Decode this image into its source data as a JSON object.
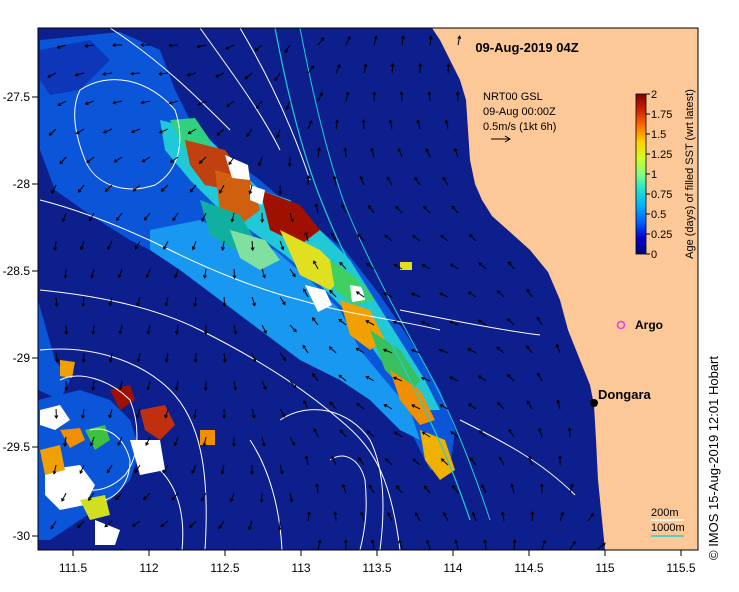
{
  "title": "09-Aug-2019 04Z",
  "current_info": {
    "line1": "NRT00 GSL",
    "line2": "09-Aug 00:00Z",
    "line3": "0.5m/s (1kt 6h)"
  },
  "colorbar": {
    "label": "Age (days) of filled SST (wrt latest)",
    "ticks": [
      "0",
      "0.25",
      "0.5",
      "0.75",
      "1",
      "1.25",
      "1.5",
      "1.75",
      "2"
    ],
    "colors": [
      "#00007f",
      "#0000d0",
      "#0060ff",
      "#00b0ff",
      "#20e0d0",
      "#80ff80",
      "#d0ff20",
      "#ffd000",
      "#ff7000",
      "#d02000",
      "#800000"
    ]
  },
  "places": [
    {
      "name": "Argo",
      "lon": 115.08,
      "lat": -28.85,
      "marker_color": "#e040e0"
    },
    {
      "name": "Dongara",
      "lon": 114.93,
      "lat": -29.27,
      "marker_color": "#000000"
    }
  ],
  "axes": {
    "x_ticks": [
      "111.5",
      "112",
      "112.5",
      "113",
      "113.5",
      "114",
      "114.5",
      "115",
      "115.5"
    ],
    "y_ticks": [
      "-27.5",
      "-28",
      "-28.5",
      "-29",
      "-29.5",
      "-30"
    ],
    "xlim": [
      111.3,
      115.6
    ],
    "ylim": [
      -30.1,
      -27.1
    ]
  },
  "scale_legend": {
    "line1": "200m",
    "line2": "1000m",
    "color1": "#ffffff",
    "color2": "#20d0d0"
  },
  "credit": "© IMOS 15-Aug-2019 12:01 Hobart",
  "colors": {
    "ocean": "#0c1f8c",
    "land": "#fcc898",
    "contour": "#ffffff",
    "isobath": "#20d0d0"
  }
}
